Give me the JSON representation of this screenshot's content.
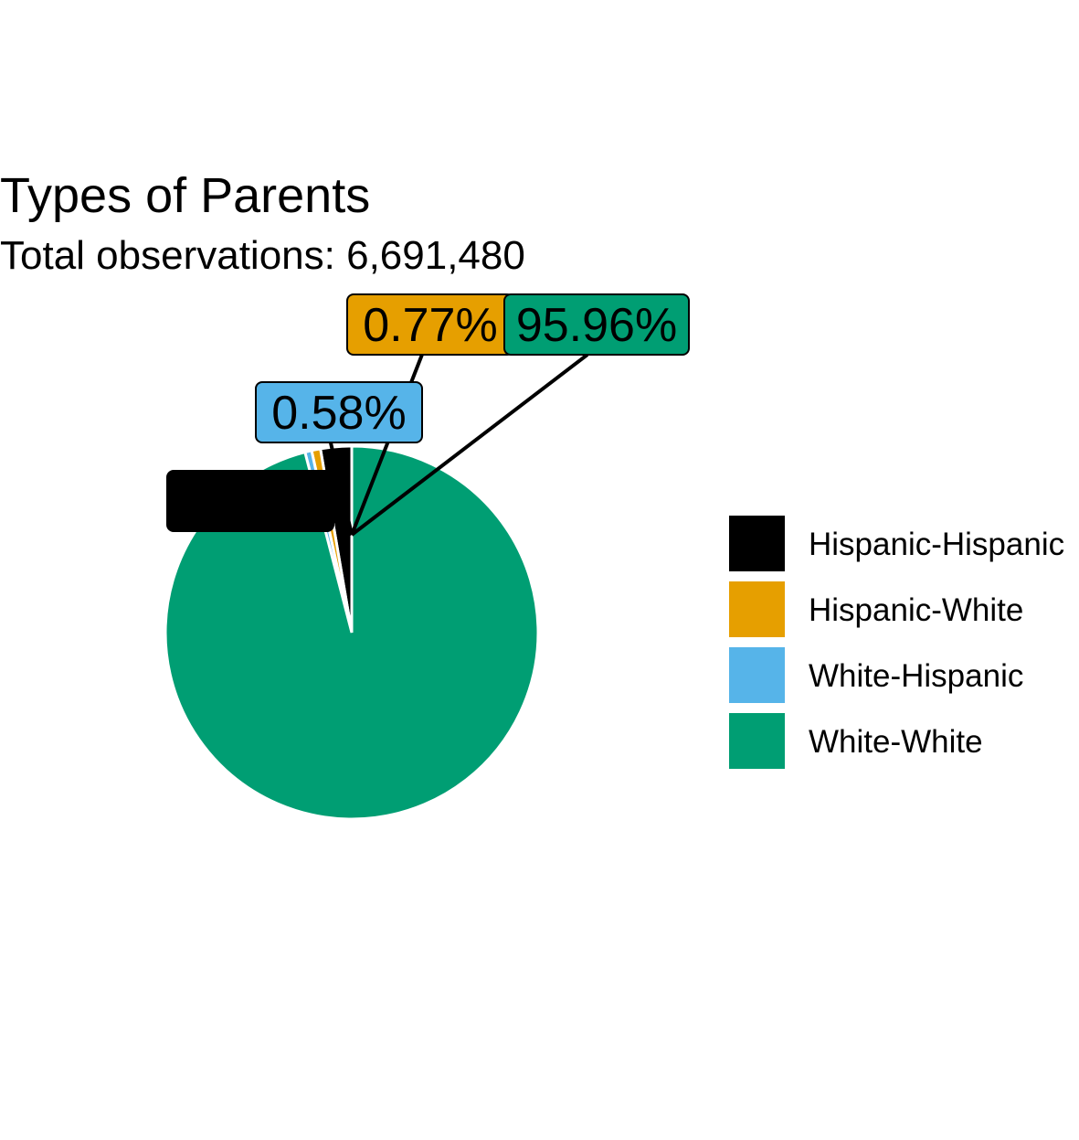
{
  "chart_data": {
    "type": "pie",
    "title": "Types of Parents",
    "subtitle": "Total observations: 6,691,480",
    "slices": [
      {
        "name": "Hispanic-Hispanic",
        "value": 2.69,
        "label": "2.69%",
        "color": "#000000"
      },
      {
        "name": "Hispanic-White",
        "value": 0.77,
        "label": "0.77%",
        "color": "#E69F00"
      },
      {
        "name": "White-Hispanic",
        "value": 0.58,
        "label": "0.58%",
        "color": "#56B4E9"
      },
      {
        "name": "White-White",
        "value": 95.96,
        "label": "95.96%",
        "color": "#009E73"
      }
    ],
    "legend": {
      "position": "right"
    }
  }
}
